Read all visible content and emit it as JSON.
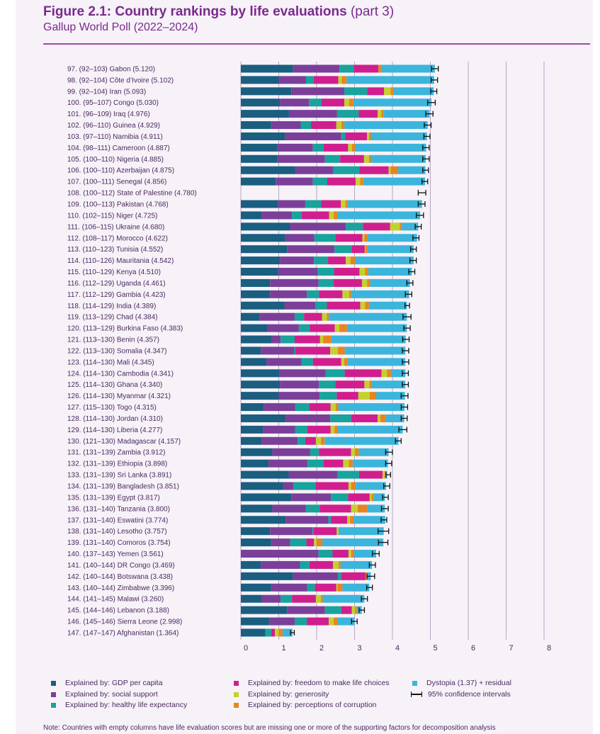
{
  "header": {
    "title_main": "Figure 2.1: Country rankings by life evaluations",
    "title_part": "(part 3)",
    "subtitle": "Gallup World Poll (2022–2024)"
  },
  "colors": {
    "gdp": "#1a5e80",
    "social": "#7b3f99",
    "health": "#18a39c",
    "freedom": "#d01e8e",
    "generosity": "#c3d12e",
    "corruption": "#e8841e",
    "dystopia": "#3bb5dc",
    "ci": "#111111",
    "grid": "#b7a5c2"
  },
  "chart_data": {
    "type": "bar",
    "stacked": true,
    "orientation": "horizontal",
    "xlim": [
      0,
      8
    ],
    "x_ticks": [
      "0",
      "1",
      "2",
      "3",
      "4",
      "5",
      "6",
      "7",
      "8"
    ],
    "grid": true,
    "legend_position": "bottom",
    "components": [
      "gdp",
      "social",
      "health",
      "freedom",
      "generosity",
      "corruption",
      "dystopia"
    ],
    "rows": [
      {
        "label": "97.  (92–103) Gabon (5.120)",
        "score": 5.12,
        "ci": [
          5.03,
          5.21
        ],
        "parts": [
          1.38,
          1.22,
          0.38,
          0.65,
          0.0,
          0.07,
          1.42
        ]
      },
      {
        "label": "98.  (92–104) Côte d’Ivoire (5.102)",
        "score": 5.102,
        "ci": [
          5.02,
          5.19
        ],
        "parts": [
          1.0,
          0.72,
          0.2,
          0.65,
          0.09,
          0.13,
          2.31
        ]
      },
      {
        "label": "99.  (92–104) Iran (5.093)",
        "score": 5.093,
        "ci": [
          5.01,
          5.17
        ],
        "parts": [
          1.33,
          1.4,
          0.6,
          0.45,
          0.17,
          0.07,
          1.07
        ]
      },
      {
        "label": "100.  (95–107) Congo (5.030)",
        "score": 5.03,
        "ci": [
          4.93,
          5.13
        ],
        "parts": [
          1.03,
          0.77,
          0.33,
          0.6,
          0.13,
          0.11,
          2.06
        ]
      },
      {
        "label": "101.  (96–109) Iraq (4.976)",
        "score": 4.976,
        "ci": [
          4.88,
          5.07
        ],
        "parts": [
          1.27,
          1.27,
          0.57,
          0.5,
          0.1,
          0.06,
          1.21
        ]
      },
      {
        "label": "102.  (96–110) Guinea (4.929)",
        "score": 4.929,
        "ci": [
          4.84,
          5.02
        ],
        "parts": [
          0.8,
          0.78,
          0.27,
          0.67,
          0.13,
          0.08,
          2.2
        ]
      },
      {
        "label": "103.  (97–110) Namibia (4.911)",
        "score": 4.911,
        "ci": [
          4.83,
          4.99
        ],
        "parts": [
          1.17,
          1.48,
          0.1,
          0.58,
          0.05,
          0.05,
          1.48
        ]
      },
      {
        "label": "104.  (98–111) Cameroon (4.887)",
        "score": 4.887,
        "ci": [
          4.8,
          4.97
        ],
        "parts": [
          0.97,
          0.93,
          0.28,
          0.65,
          0.1,
          0.08,
          1.88
        ]
      },
      {
        "label": "105.  (100–110) Nigeria (4.885)",
        "score": 4.885,
        "ci": [
          4.8,
          4.97
        ],
        "parts": [
          0.97,
          1.25,
          0.4,
          0.63,
          0.13,
          0.05,
          1.45
        ]
      },
      {
        "label": "106.  (100–110) Azerbaijan (4.875)",
        "score": 4.875,
        "ci": [
          4.8,
          4.95
        ],
        "parts": [
          1.43,
          1.0,
          0.7,
          0.77,
          0.05,
          0.2,
          0.72
        ]
      },
      {
        "label": "107.  (100–111) Senegal (4.856)",
        "score": 4.856,
        "ci": [
          4.78,
          4.93
        ],
        "parts": [
          0.92,
          0.98,
          0.38,
          0.75,
          0.12,
          0.08,
          1.63
        ]
      },
      {
        "label": "108.  (100–112) State of Palestine (4.780)",
        "score": 4.78,
        "ci": [
          4.68,
          4.88
        ],
        "parts": null
      },
      {
        "label": "109.  (100–113) Pakistan (4.768)",
        "score": 4.768,
        "ci": [
          4.68,
          4.86
        ],
        "parts": [
          0.98,
          0.72,
          0.42,
          0.52,
          0.12,
          0.05,
          1.97
        ]
      },
      {
        "label": "110.  (102–115) Niger (4.725)",
        "score": 4.725,
        "ci": [
          4.63,
          4.82
        ],
        "parts": [
          0.55,
          0.8,
          0.25,
          0.73,
          0.12,
          0.1,
          2.18
        ]
      },
      {
        "label": "111.  (106–115) Ukraine (4.680)",
        "score": 4.68,
        "ci": [
          4.6,
          4.76
        ],
        "parts": [
          1.3,
          1.47,
          0.45,
          0.72,
          0.25,
          0.05,
          0.44
        ]
      },
      {
        "label": "112.  (108–117) Morocco (4.622)",
        "score": 4.622,
        "ci": [
          4.54,
          4.7
        ],
        "parts": [
          1.17,
          0.77,
          0.55,
          0.72,
          0.05,
          0.08,
          1.31
        ]
      },
      {
        "label": "113.  (110–123) Tunisia (4.552)",
        "score": 4.552,
        "ci": [
          4.48,
          4.63
        ],
        "parts": [
          1.22,
          1.25,
          0.45,
          0.35,
          0.02,
          0.05,
          1.22
        ]
      },
      {
        "label": "114.  (110–126) Mauritania (4.542)",
        "score": 4.542,
        "ci": [
          4.46,
          4.63
        ],
        "parts": [
          1.03,
          0.9,
          0.37,
          0.47,
          0.12,
          0.12,
          1.55
        ]
      },
      {
        "label": "115.  (110–129) Kenya (4.510)",
        "score": 4.51,
        "ci": [
          4.43,
          4.59
        ],
        "parts": [
          0.98,
          1.05,
          0.43,
          0.67,
          0.15,
          0.08,
          1.15
        ]
      },
      {
        "label": "116.  (112–129) Uganda (4.461)",
        "score": 4.461,
        "ci": [
          4.38,
          4.54
        ],
        "parts": [
          0.77,
          1.28,
          0.4,
          0.75,
          0.13,
          0.08,
          1.05
        ]
      },
      {
        "label": "117.  (112–129) Gambia (4.423)",
        "score": 4.423,
        "ci": [
          4.34,
          4.51
        ],
        "parts": [
          0.77,
          0.97,
          0.32,
          0.62,
          0.18,
          0.05,
          1.53
        ]
      },
      {
        "label": "118.  (114–129) India (4.389)",
        "score": 4.389,
        "ci": [
          4.33,
          4.45
        ],
        "parts": [
          1.15,
          0.82,
          0.3,
          0.88,
          0.13,
          0.1,
          1.0
        ]
      },
      {
        "label": "119.  (113–129) Chad (4.384)",
        "score": 4.384,
        "ci": [
          4.28,
          4.49
        ],
        "parts": [
          0.5,
          0.92,
          0.25,
          0.47,
          0.13,
          0.05,
          2.06
        ]
      },
      {
        "label": "120.  (113–129) Burkina Faso (4.383)",
        "score": 4.383,
        "ci": [
          4.3,
          4.47
        ],
        "parts": [
          0.7,
          0.83,
          0.28,
          0.67,
          0.12,
          0.2,
          1.58
        ]
      },
      {
        "label": "121.  (113–130) Benin (4.357)",
        "score": 4.357,
        "ci": [
          4.27,
          4.44
        ],
        "parts": [
          0.82,
          0.23,
          0.37,
          0.67,
          0.08,
          0.22,
          1.96
        ]
      },
      {
        "label": "122.  (113–130) Somalia (4.347)",
        "score": 4.347,
        "ci": [
          4.26,
          4.43
        ],
        "parts": [
          0.53,
          0.88,
          0.03,
          0.92,
          0.2,
          0.18,
          1.6
        ]
      },
      {
        "label": "123.  (114–130) Mali (4.345)",
        "score": 4.345,
        "ci": [
          4.26,
          4.43
        ],
        "parts": [
          0.68,
          0.92,
          0.3,
          0.75,
          0.08,
          0.08,
          1.53
        ]
      },
      {
        "label": "124.  (114–130) Cambodia (4.341)",
        "score": 4.341,
        "ci": [
          4.26,
          4.42
        ],
        "parts": [
          1.02,
          1.22,
          0.5,
          0.97,
          0.15,
          0.1,
          0.38
        ]
      },
      {
        "label": "125.  (114–130) Ghana (4.340)",
        "score": 4.34,
        "ci": [
          4.26,
          4.42
        ],
        "parts": [
          1.03,
          1.03,
          0.43,
          0.77,
          0.13,
          0.05,
          0.9
        ]
      },
      {
        "label": "126.  (114–130) Myanmar (4.321)",
        "score": 4.321,
        "ci": [
          4.23,
          4.41
        ],
        "parts": [
          1.0,
          1.08,
          0.45,
          0.57,
          0.3,
          0.17,
          0.76
        ]
      },
      {
        "label": "127.  (115–130) Togo (4.315)",
        "score": 4.315,
        "ci": [
          4.23,
          4.4
        ],
        "parts": [
          0.6,
          0.83,
          0.37,
          0.57,
          0.13,
          0.07,
          1.75
        ]
      },
      {
        "label": "128.  (114–130) Jordan (4.310)",
        "score": 4.31,
        "ci": [
          4.23,
          4.39
        ],
        "parts": [
          1.18,
          1.18,
          0.55,
          0.7,
          0.07,
          0.15,
          0.48
        ]
      },
      {
        "label": "129.  (114–130) Liberia (4.277)",
        "score": 4.277,
        "ci": [
          4.17,
          4.38
        ],
        "parts": [
          0.58,
          0.85,
          0.32,
          0.62,
          0.1,
          0.08,
          1.72
        ]
      },
      {
        "label": "130.  (121–130) Madagascar (4.157)",
        "score": 4.157,
        "ci": [
          4.08,
          4.23
        ],
        "parts": [
          0.55,
          0.95,
          0.2,
          0.28,
          0.13,
          0.1,
          1.95
        ]
      },
      {
        "label": "131.  (131–139) Zambia (3.912)",
        "score": 3.912,
        "ci": [
          3.82,
          4.0
        ],
        "parts": [
          0.83,
          1.0,
          0.23,
          0.85,
          0.1,
          0.1,
          0.79
        ]
      },
      {
        "label": "132.  (131–139) Ethiopia (3.898)",
        "score": 3.898,
        "ci": [
          3.82,
          3.98
        ],
        "parts": [
          0.73,
          1.03,
          0.42,
          0.52,
          0.15,
          0.1,
          0.93
        ]
      },
      {
        "label": "133.  (131–139) Sri Lanka (3.891)",
        "score": 3.891,
        "ci": [
          3.83,
          3.95
        ],
        "parts": [
          1.27,
          1.28,
          0.57,
          0.62,
          0.05,
          0.03,
          0.04
        ]
      },
      {
        "label": "134.  (131–139) Bangladesh (3.851)",
        "score": 3.851,
        "ci": [
          3.77,
          3.93
        ],
        "parts": [
          1.12,
          0.27,
          0.58,
          0.87,
          0.07,
          0.12,
          0.8
        ]
      },
      {
        "label": "135.  (131–139) Egypt (3.817)",
        "score": 3.817,
        "ci": [
          3.74,
          3.89
        ],
        "parts": [
          1.33,
          1.05,
          0.45,
          0.57,
          0.05,
          0.05,
          0.3
        ]
      },
      {
        "label": "136.  (131–140) Tanzania (3.800)",
        "score": 3.8,
        "ci": [
          3.71,
          3.89
        ],
        "parts": [
          0.83,
          0.88,
          0.37,
          0.83,
          0.17,
          0.25,
          0.47
        ]
      },
      {
        "label": "137.  (131–140) Eswatini (3.774)",
        "score": 3.774,
        "ci": [
          3.7,
          3.85
        ],
        "parts": [
          1.18,
          1.13,
          0.07,
          0.43,
          0.07,
          0.1,
          0.83
        ]
      },
      {
        "label": "138.  (131–140) Lesotho (3.757)",
        "score": 3.757,
        "ci": [
          3.62,
          3.9
        ],
        "parts": [
          0.77,
          1.12,
          0.02,
          0.62,
          0.05,
          0.0,
          1.19
        ]
      },
      {
        "label": "139.  (131–140) Comoros (3.754)",
        "score": 3.754,
        "ci": [
          3.63,
          3.88
        ],
        "parts": [
          0.8,
          0.5,
          0.43,
          0.2,
          0.07,
          0.15,
          1.61
        ]
      },
      {
        "label": "140.  (137–143) Yemen (3.561)",
        "score": 3.561,
        "ci": [
          3.47,
          3.65
        ],
        "parts": [
          0.0,
          2.05,
          0.37,
          0.42,
          0.07,
          0.08,
          0.58
        ]
      },
      {
        "label": "141.  (140–144) DR Congo (3.469)",
        "score": 3.469,
        "ci": [
          3.39,
          3.55
        ],
        "parts": [
          0.53,
          1.03,
          0.25,
          0.62,
          0.15,
          0.05,
          0.83
        ]
      },
      {
        "label": "142.  (140–144) Botswana (3.438)",
        "score": 3.438,
        "ci": [
          3.33,
          3.53
        ],
        "parts": [
          1.38,
          1.18,
          0.08,
          0.65,
          0.0,
          0.05,
          0.09
        ]
      },
      {
        "label": "143.  (140–144) Zimbabwe (3.396)",
        "score": 3.396,
        "ci": [
          3.32,
          3.47
        ],
        "parts": [
          0.8,
          0.95,
          0.2,
          0.57,
          0.03,
          0.13,
          0.71
        ]
      },
      {
        "label": "144.  (141–145) Malawi (3.260)",
        "score": 3.26,
        "ci": [
          3.18,
          3.34
        ],
        "parts": [
          0.55,
          0.5,
          0.3,
          0.63,
          0.13,
          0.05,
          1.1
        ]
      },
      {
        "label": "145.  (144–146) Lebanon (3.188)",
        "score": 3.188,
        "ci": [
          3.12,
          3.26
        ],
        "parts": [
          1.22,
          1.0,
          0.43,
          0.28,
          0.08,
          0.05,
          0.13
        ]
      },
      {
        "label": "146.  (145–146) Sierra Leone (2.998)",
        "score": 2.998,
        "ci": [
          2.92,
          3.07
        ],
        "parts": [
          0.75,
          0.67,
          0.32,
          0.58,
          0.13,
          0.1,
          0.45
        ]
      },
      {
        "label": "147.  (147–147) Afghanistan (1.364)",
        "score": 1.364,
        "ci": [
          1.31,
          1.41
        ],
        "parts": [
          0.65,
          0.0,
          0.15,
          0.1,
          0.1,
          0.1,
          0.26
        ]
      }
    ]
  },
  "legend": {
    "gdp": "Explained by: GDP per capita",
    "social": "Explained by: social support",
    "health": "Explained by: healthy life expectancy",
    "freedom": "Explained by: freedom to make life choices",
    "generosity": "Explained by: generosity",
    "corruption": "Explained by: perceptions of corruption",
    "dystopia": "Dystopia (1.37) + residual",
    "ci": "95% confidence intervals"
  },
  "note": "Note: Countries with empty columns have life evaluation scores but are missing one or more of the supporting factors for decomposition analysis"
}
